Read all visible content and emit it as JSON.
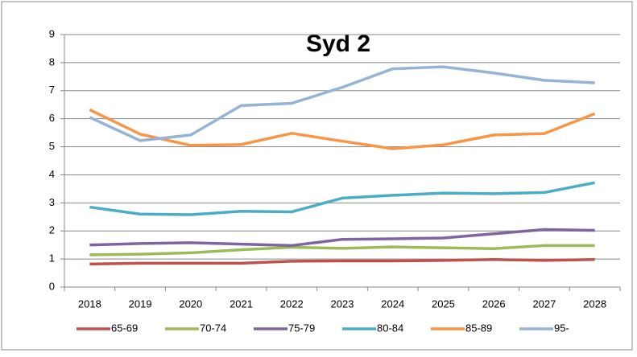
{
  "chart_data": {
    "type": "line",
    "title": "Syd 2",
    "categories": [
      "2018",
      "2019",
      "2020",
      "2021",
      "2022",
      "2023",
      "2024",
      "2025",
      "2026",
      "2027",
      "2028"
    ],
    "series": [
      {
        "name": "65-69",
        "color": "#c0504d",
        "values": [
          0.82,
          0.85,
          0.85,
          0.85,
          0.92,
          0.93,
          0.93,
          0.95,
          0.98,
          0.95,
          0.98
        ]
      },
      {
        "name": "70-74",
        "color": "#9bbb59",
        "values": [
          1.15,
          1.17,
          1.22,
          1.33,
          1.42,
          1.38,
          1.43,
          1.4,
          1.37,
          1.48,
          1.48
        ]
      },
      {
        "name": "75-79",
        "color": "#8064a2",
        "values": [
          1.5,
          1.55,
          1.58,
          1.53,
          1.48,
          1.7,
          1.72,
          1.75,
          1.9,
          2.05,
          2.02
        ]
      },
      {
        "name": "80-84",
        "color": "#4bacc6",
        "values": [
          2.85,
          2.6,
          2.58,
          2.7,
          2.68,
          3.17,
          3.27,
          3.35,
          3.33,
          3.37,
          3.72
        ]
      },
      {
        "name": "85-89",
        "color": "#f79646",
        "values": [
          6.32,
          5.45,
          5.05,
          5.08,
          5.48,
          5.2,
          4.93,
          5.07,
          5.42,
          5.47,
          6.18
        ]
      },
      {
        "name": "95-",
        "color": "#95b3d7",
        "values": [
          6.05,
          5.22,
          5.42,
          6.47,
          6.55,
          7.12,
          7.78,
          7.85,
          7.63,
          7.37,
          7.28
        ]
      }
    ],
    "ylim": [
      0,
      9
    ],
    "yticks": [
      0,
      1,
      2,
      3,
      4,
      5,
      6,
      7,
      8,
      9
    ],
    "grid": true,
    "legend": "bottom"
  }
}
